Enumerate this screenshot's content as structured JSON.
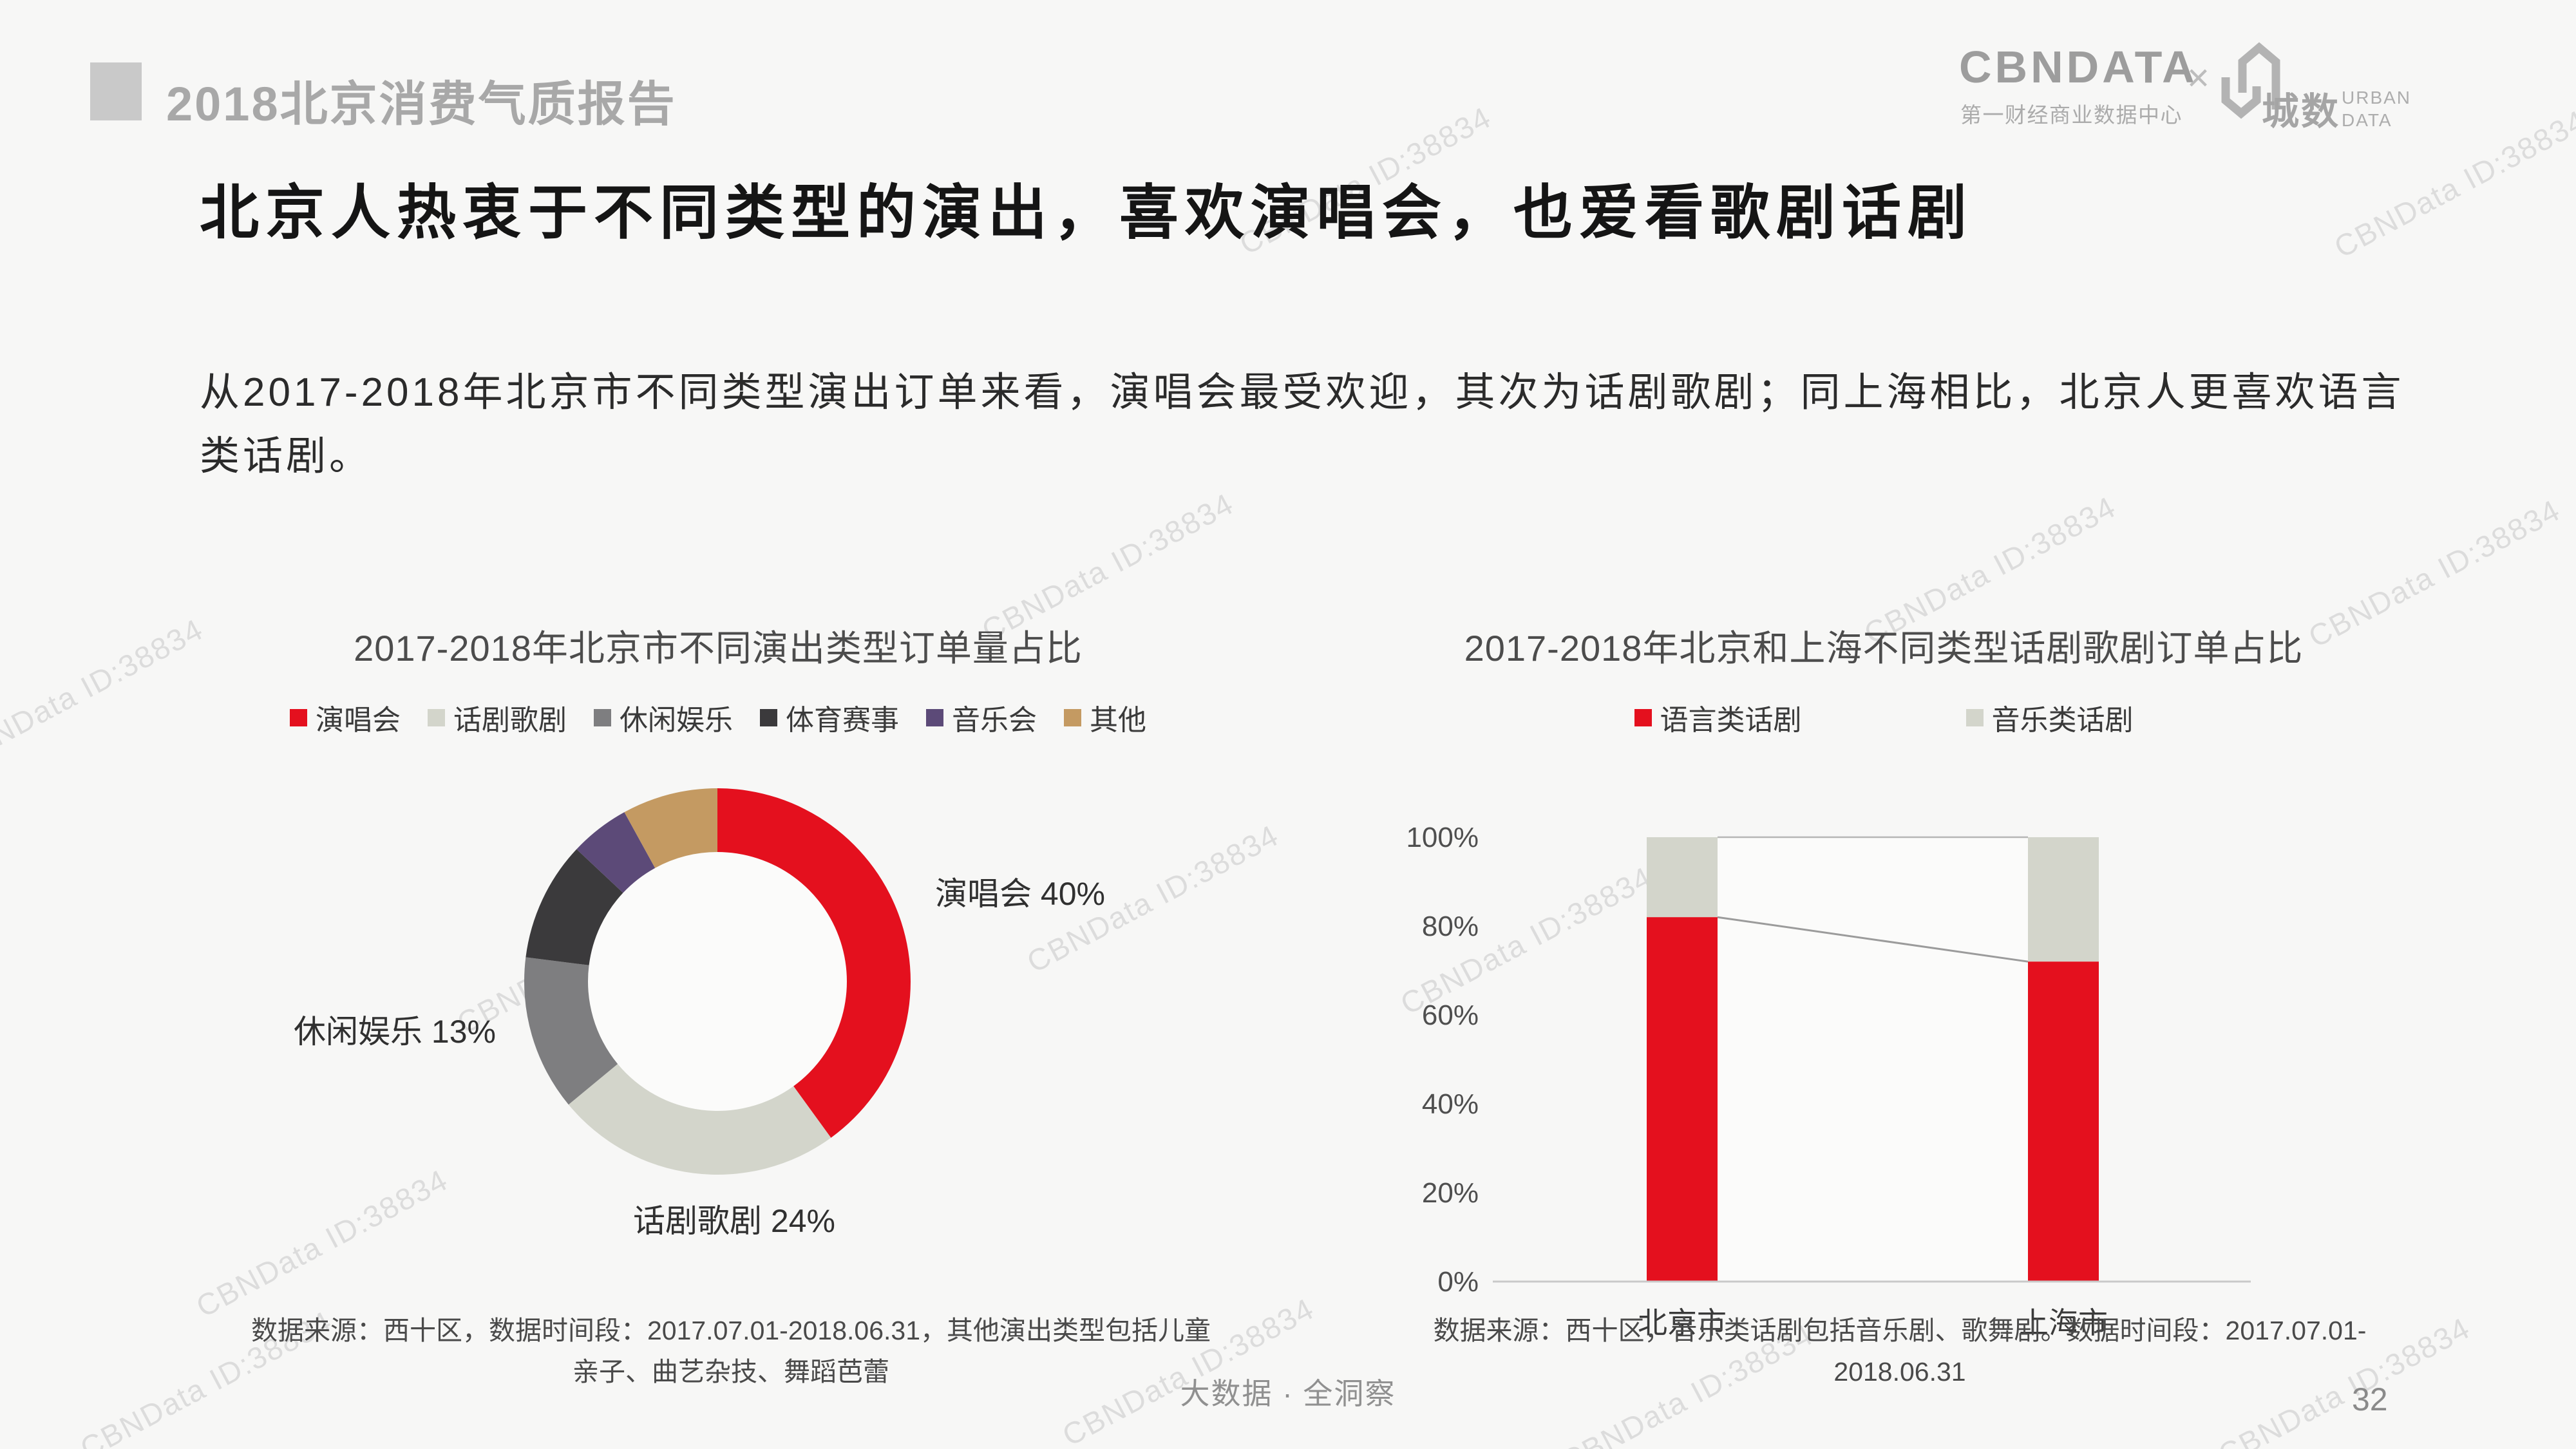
{
  "watermark": {
    "text": "CBNData ID:38834"
  },
  "header": {
    "report_title": "2018北京消费气质报告",
    "cbn_logo": {
      "wordmark": "CBNDATA",
      "subtitle": "第一财经商业数据中心"
    },
    "separator": "×",
    "urban_logo": {
      "cn": "城数",
      "en_line1": "URBAN",
      "en_line2": "DATA"
    }
  },
  "page": {
    "title": "北京人热衷于不同类型的演出，喜欢演唱会，也爱看歌剧话剧",
    "body": "从2017-2018年北京市不同类型演出订单来看，演唱会最受欢迎，其次为话剧歌剧；同上海相比，北京人更喜欢语言类话剧。",
    "footer_center": "大数据 · 全洞察",
    "page_number": "32"
  },
  "chart_data": [
    {
      "id": "donut-performance-types",
      "type": "pie",
      "title": "2017-2018年北京市不同演出类型订单量占比",
      "categories": [
        "演唱会",
        "话剧歌剧",
        "休闲娱乐",
        "体育赛事",
        "音乐会",
        "其他"
      ],
      "values": [
        40,
        24,
        13,
        10,
        5,
        8
      ],
      "unit": "%",
      "colors": [
        "#e4101e",
        "#d3d5cb",
        "#7e7e80",
        "#3b3a3c",
        "#5c4a78",
        "#c49a62"
      ],
      "inner_radius_ratio": 0.67,
      "start_angle_deg": 0,
      "direction": "clockwise",
      "legend_position": "top",
      "callouts": [
        {
          "text": "演唱会 40%",
          "placement": "right"
        },
        {
          "text": "休闲娱乐 13%",
          "placement": "left"
        },
        {
          "text": "话剧歌剧 24%",
          "placement": "bottom"
        }
      ],
      "footnote_line1": "数据来源：西十区，数据时间段：2017.07.01-2018.06.31，其他演出类型包括儿童",
      "footnote_line2": "亲子、曲艺杂技、舞蹈芭蕾"
    },
    {
      "id": "stacked-bars-drama-types",
      "type": "bar",
      "title": "2017-2018年北京和上海不同类型话剧歌剧订单占比",
      "categories": [
        "北京市",
        "上海市"
      ],
      "series": [
        {
          "name": "语言类话剧",
          "color": "#e4101e",
          "values": [
            82,
            72
          ]
        },
        {
          "name": "音乐类话剧",
          "color": "#d3d5cb",
          "values": [
            18,
            28
          ]
        }
      ],
      "stacked": true,
      "percent": true,
      "ylim": [
        0,
        100
      ],
      "y_ticks": [
        "0%",
        "20%",
        "40%",
        "60%",
        "80%",
        "100%"
      ],
      "grid": false,
      "series_connector_lines": true,
      "legend_position": "top",
      "footnote_line1": "数据来源：西十区，音乐类话剧包括音乐剧、歌舞剧。数据时间段：2017.07.01-",
      "footnote_line2": "2018.06.31"
    }
  ]
}
